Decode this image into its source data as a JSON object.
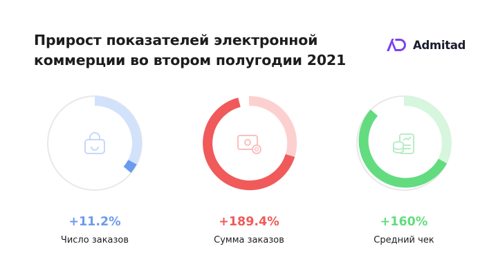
{
  "title_lines": [
    "Прирост показателей электронной",
    "коммерции во втором полугодии 2021"
  ],
  "brand": {
    "name": "Admitad",
    "accent": "#7b3ff2"
  },
  "metrics": [
    {
      "value": "+11.2%",
      "label": "Число заказов",
      "icon": "shopping-bag-icon",
      "fill_fraction": 0.112,
      "color": "#6b9bef",
      "light": "#d3e2fb"
    },
    {
      "value": "+189.4%",
      "label": "Сумма заказов",
      "icon": "payment-card-coins-icon",
      "fill_fraction": 0.647,
      "color": "#f05a5a",
      "light": "#fdd0d0"
    },
    {
      "value": "+160%",
      "label": "Средний чек",
      "icon": "receipt-coins-icon",
      "fill_fraction": 0.615,
      "color": "#62dc7f",
      "light": "#d6f6dd"
    }
  ]
}
